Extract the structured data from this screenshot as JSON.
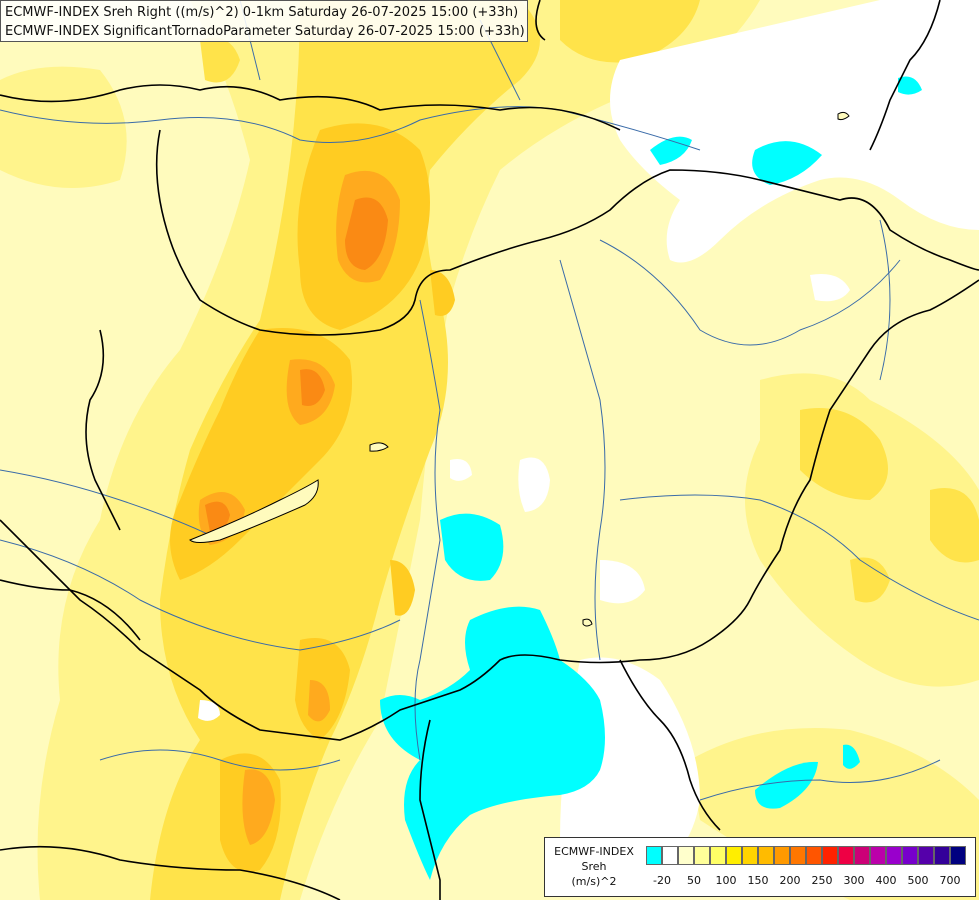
{
  "title": {
    "line1": "ECMWF-INDEX Sreh Right ((m/s)^2) 0-1km Saturday 26-07-2025 15:00 (+33h)",
    "line2": "ECMWF-INDEX SignificantTornadoParameter Saturday 26-07-2025 15:00 (+33h)"
  },
  "legend": {
    "source": "ECMWF-INDEX",
    "variable": "Sreh",
    "unit": "(m/s)^2",
    "colors": [
      "#00ffff",
      "#ffffff",
      "#ffffcc",
      "#ffff99",
      "#ffff66",
      "#ffee00",
      "#ffd400",
      "#ffbb00",
      "#ff9900",
      "#ff7700",
      "#ff5500",
      "#ff2200",
      "#ee0044",
      "#cc0077",
      "#bb00aa",
      "#9900cc",
      "#7700cc",
      "#5500aa",
      "#330099",
      "#000080"
    ],
    "ticks": [
      "-20",
      "50",
      "100",
      "150",
      "200",
      "250",
      "300",
      "400",
      "500",
      "700"
    ]
  },
  "field_colors": {
    "background": "#fffbbd",
    "light_yellow": "#fff48c",
    "yellow": "#ffe34a",
    "gold": "#ffcc22",
    "orange": "#ffaa1e",
    "dark_orange": "#fa8a14",
    "cyan": "#00ffff",
    "white": "#ffffff",
    "border": "#000000",
    "river": "#3a6ba8"
  }
}
